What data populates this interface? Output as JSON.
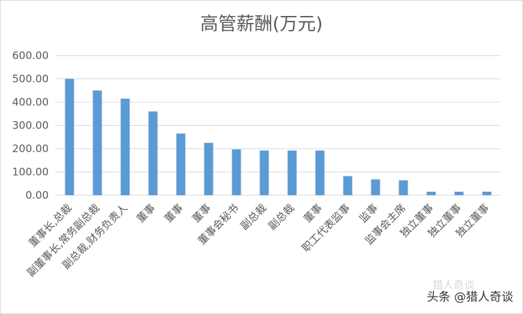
{
  "chart_data": {
    "type": "bar",
    "title": "高管薪酬(万元)",
    "categories": [
      "董事长,总裁",
      "副董事长,常务副总裁",
      "副总裁,财务负责人",
      "董事",
      "董事",
      "董事",
      "董事会秘书",
      "副总裁",
      "副总裁",
      "董事",
      "职工代表监事",
      "监事",
      "监事会主席",
      "独立董事",
      "独立董事",
      "独立董事"
    ],
    "values": [
      500,
      450,
      415,
      360,
      265,
      225,
      197,
      192,
      192,
      192,
      82,
      68,
      64,
      15,
      15,
      15
    ],
    "ylim": [
      0,
      600
    ],
    "yticks": [
      "0.00",
      "100.00",
      "200.00",
      "300.00",
      "400.00",
      "500.00",
      "600.00"
    ],
    "grid": true,
    "bar_color": "#5b9bd5",
    "legend": "none"
  },
  "watermark": {
    "text": "头条 @猎人奇谈",
    "ghost_text": "猎人奇谈"
  }
}
